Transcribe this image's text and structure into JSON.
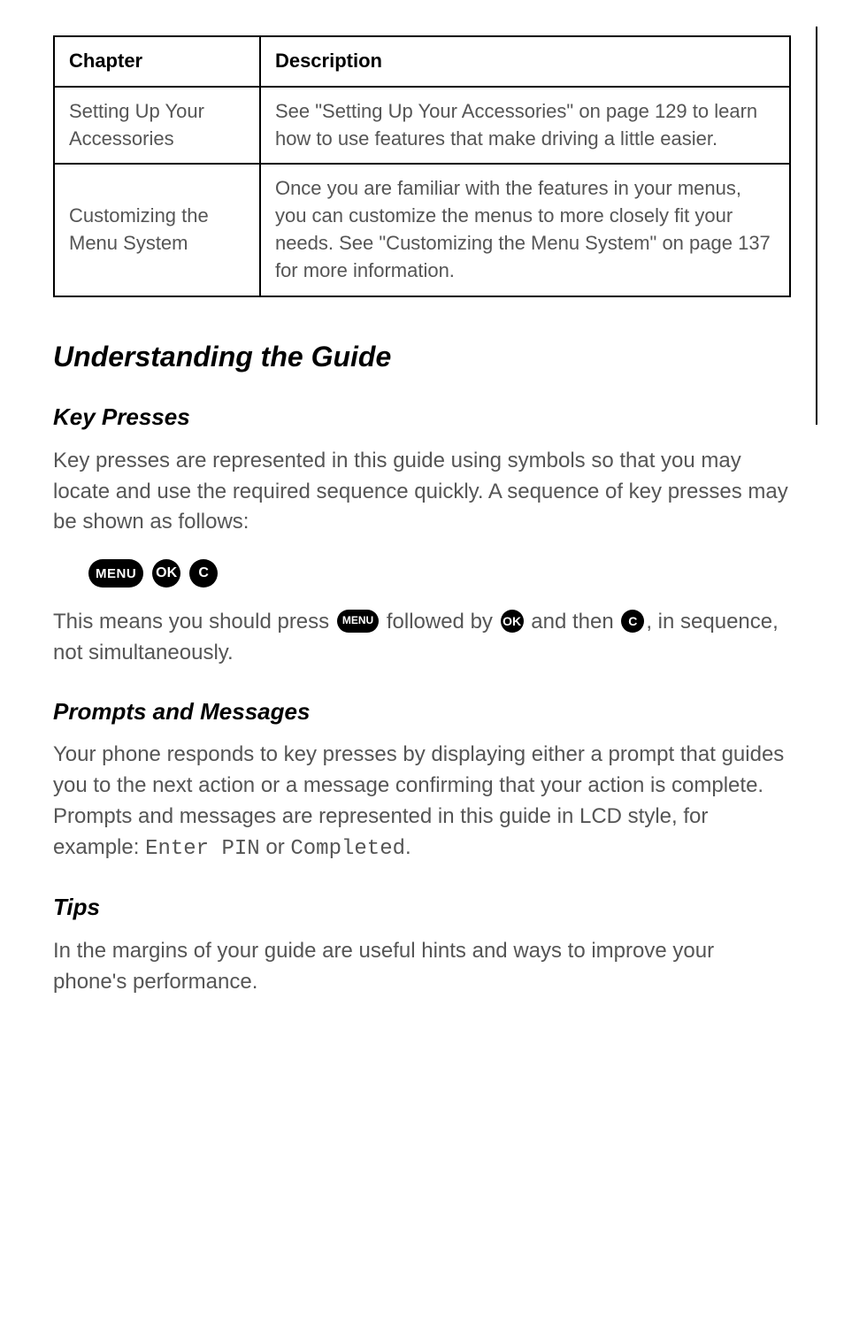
{
  "table": {
    "headers": {
      "col1": "Chapter",
      "col2": "Description"
    },
    "rows": [
      {
        "chapter": "Setting Up Your Accessories",
        "description": "See \"Setting Up Your Accessories\" on page 129 to learn how to use features that make driving a little easier."
      },
      {
        "chapter": "Customizing the Menu System",
        "description": "Once you are familiar with the features in your menus, you can customize the menus to more closely fit your needs. See \"Customizing the Menu System\" on page 137 for more information."
      }
    ]
  },
  "heading_main": "Understanding the Guide",
  "sections": {
    "key_presses": {
      "title": "Key Presses",
      "para1": "Key presses are represented in this guide using symbols so that you may locate and use the required sequence quickly. A sequence of key presses may be shown as follows:",
      "icons": {
        "menu": "MENU",
        "ok": "OK",
        "c": "C"
      },
      "para2_a": "This means you should press ",
      "para2_b": " followed by ",
      "para2_c": " and then ",
      "para2_d": ", in sequence, not simultaneously."
    },
    "prompts": {
      "title": "Prompts and Messages",
      "para_a": "Your phone responds to key presses by displaying either a prompt that guides you to the next action or a message confirming that your action is complete. Prompts and messages are represented in this guide in LCD style, for example: ",
      "lcd1": "Enter PIN",
      "para_b": " or ",
      "lcd2": "Completed",
      "para_c": "."
    },
    "tips": {
      "title": "Tips",
      "para": "In the margins of your guide are useful hints and ways to improve your phone's performance."
    }
  },
  "colors": {
    "text_body": "#555555",
    "text_heading": "#000000",
    "border": "#000000",
    "icon_bg": "#000000",
    "icon_fg": "#ffffff",
    "background": "#ffffff"
  },
  "typography": {
    "body_fontsize": 24,
    "h2_fontsize": 32,
    "h3_fontsize": 26,
    "table_fontsize": 22,
    "font_family": "Arial, Helvetica, sans-serif",
    "lcd_font": "Courier New, monospace"
  }
}
